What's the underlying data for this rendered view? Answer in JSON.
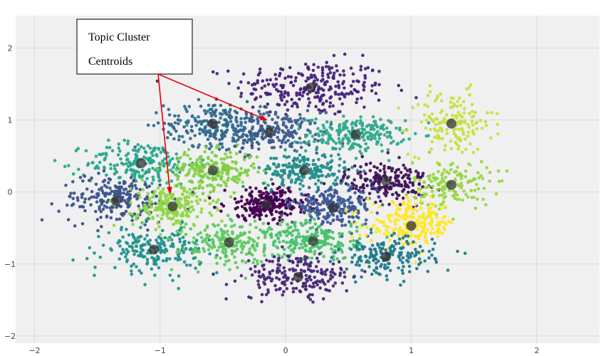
{
  "chart_data": {
    "type": "scatter",
    "title": "",
    "xlabel": "",
    "ylabel": "",
    "xlim": [
      -2.15,
      2.5
    ],
    "ylim": [
      -2.1,
      2.45
    ],
    "grid": true,
    "x_ticks": [
      -2,
      -1,
      0,
      1,
      2
    ],
    "y_ticks": [
      -2,
      -1,
      0,
      1,
      2
    ],
    "x_tick_labels": [
      "−2",
      "−1",
      "0",
      "1",
      "2"
    ],
    "y_tick_labels": [
      "−2",
      "−1",
      "0",
      "1",
      "2"
    ],
    "clusters": [
      {
        "center": [
          0.2,
          1.45
        ],
        "spread": [
          0.55,
          0.35
        ],
        "n": 260,
        "color": "#46237a"
      },
      {
        "center": [
          -0.13,
          0.83
        ],
        "spread": [
          0.38,
          0.25
        ],
        "n": 230,
        "color": "#3b5c8c"
      },
      {
        "center": [
          0.56,
          0.8
        ],
        "spread": [
          0.35,
          0.22
        ],
        "n": 220,
        "color": "#2fa98c"
      },
      {
        "center": [
          1.32,
          0.95
        ],
        "spread": [
          0.3,
          0.4
        ],
        "n": 160,
        "color": "#c8df3f"
      },
      {
        "center": [
          -1.15,
          0.4
        ],
        "spread": [
          0.4,
          0.28
        ],
        "n": 200,
        "color": "#27a68a"
      },
      {
        "center": [
          -0.58,
          0.95
        ],
        "spread": [
          0.35,
          0.28
        ],
        "n": 200,
        "color": "#2e6d8e"
      },
      {
        "center": [
          -0.58,
          0.3
        ],
        "spread": [
          0.33,
          0.25
        ],
        "n": 220,
        "color": "#7fcf45"
      },
      {
        "center": [
          0.15,
          0.3
        ],
        "spread": [
          0.3,
          0.22
        ],
        "n": 200,
        "color": "#218f8d"
      },
      {
        "center": [
          0.8,
          0.15
        ],
        "spread": [
          0.3,
          0.25
        ],
        "n": 200,
        "color": "#40145a"
      },
      {
        "center": [
          1.32,
          0.1
        ],
        "spread": [
          0.28,
          0.3
        ],
        "n": 150,
        "color": "#95d840"
      },
      {
        "center": [
          -1.35,
          -0.1
        ],
        "spread": [
          0.4,
          0.3
        ],
        "n": 220,
        "color": "#3b528b"
      },
      {
        "center": [
          -0.9,
          -0.2
        ],
        "spread": [
          0.28,
          0.28
        ],
        "n": 220,
        "color": "#8fd744"
      },
      {
        "center": [
          -0.15,
          -0.17
        ],
        "spread": [
          0.3,
          0.2
        ],
        "n": 240,
        "color": "#440154"
      },
      {
        "center": [
          0.38,
          -0.2
        ],
        "spread": [
          0.3,
          0.22
        ],
        "n": 230,
        "color": "#3e5a96"
      },
      {
        "center": [
          1.0,
          -0.45
        ],
        "spread": [
          0.32,
          0.28
        ],
        "n": 230,
        "color": "#fde725"
      },
      {
        "center": [
          -1.05,
          -0.8
        ],
        "spread": [
          0.35,
          0.28
        ],
        "n": 200,
        "color": "#21918c"
      },
      {
        "center": [
          -0.45,
          -0.7
        ],
        "spread": [
          0.35,
          0.28
        ],
        "n": 200,
        "color": "#5ec962"
      },
      {
        "center": [
          0.22,
          -0.68
        ],
        "spread": [
          0.35,
          0.25
        ],
        "n": 220,
        "color": "#4ac16d"
      },
      {
        "center": [
          0.8,
          -0.9
        ],
        "spread": [
          0.35,
          0.25
        ],
        "n": 180,
        "color": "#1f7a8c"
      },
      {
        "center": [
          0.1,
          -1.18
        ],
        "spread": [
          0.4,
          0.28
        ],
        "n": 200,
        "color": "#482878"
      }
    ],
    "centroids": [
      [
        0.2,
        1.45
      ],
      [
        -0.13,
        0.83
      ],
      [
        0.56,
        0.8
      ],
      [
        1.32,
        0.95
      ],
      [
        -1.15,
        0.4
      ],
      [
        -0.58,
        0.95
      ],
      [
        -0.58,
        0.3
      ],
      [
        0.15,
        0.3
      ],
      [
        0.8,
        0.15
      ],
      [
        1.32,
        0.1
      ],
      [
        -1.35,
        -0.12
      ],
      [
        -0.9,
        -0.2
      ],
      [
        -0.15,
        -0.17
      ],
      [
        0.38,
        -0.22
      ],
      [
        1.0,
        -0.47
      ],
      [
        -1.05,
        -0.8
      ],
      [
        -0.45,
        -0.7
      ],
      [
        0.22,
        -0.68
      ],
      [
        0.8,
        -0.9
      ],
      [
        0.1,
        -1.18
      ]
    ],
    "annotation": {
      "text_line1": "Topic Cluster",
      "text_line2": "Centroids",
      "arrow_targets": [
        [
          -0.15,
          1.0
        ],
        [
          -0.92,
          -0.02
        ]
      ]
    }
  }
}
